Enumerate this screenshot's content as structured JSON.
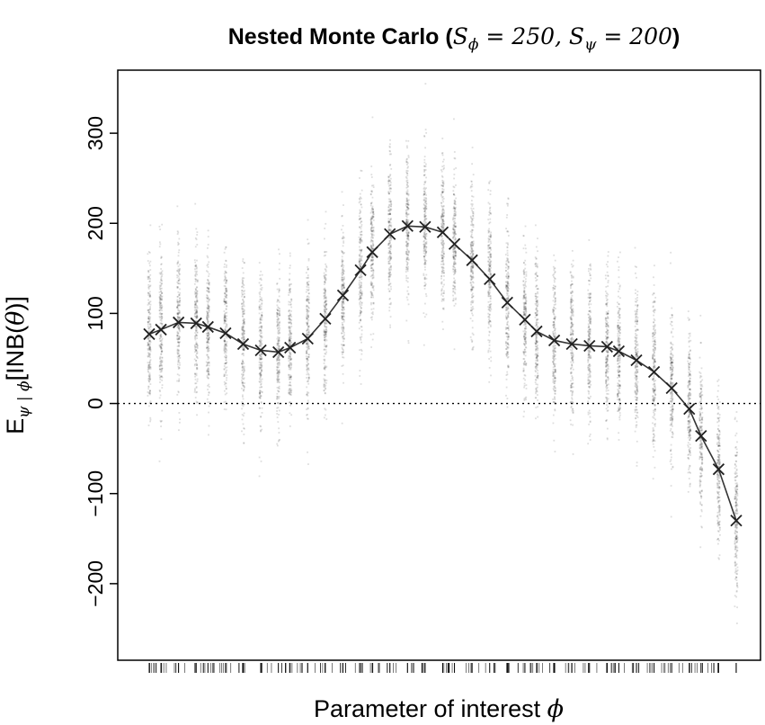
{
  "chart_data": {
    "type": "scatter",
    "title": {
      "prefix": "Nested Monte Carlo (",
      "s1": "S",
      "sub1": "ϕ",
      "eq1": " = 250, ",
      "s2": "S",
      "sub2": "ψ",
      "eq2": " = 200",
      "suffix": ")"
    },
    "xlabel": {
      "text": "Parameter of interest ",
      "symbol": "ϕ"
    },
    "ylabel": {
      "e": "E",
      "sub": "ψ | ϕ",
      "bracket": "[INB(",
      "theta": "θ",
      "close": ")]"
    },
    "ylim": [
      -285,
      370
    ],
    "yticks": [
      {
        "value": -200,
        "label": "−200"
      },
      {
        "value": -100,
        "label": "−100"
      },
      {
        "value": 0,
        "label": "0"
      },
      {
        "value": 100,
        "label": "100"
      },
      {
        "value": 200,
        "label": "200"
      },
      {
        "value": 300,
        "label": "300"
      }
    ],
    "reference_line": {
      "y": 0,
      "style": "dotted"
    },
    "x_ticks_shown": false,
    "grid": false,
    "legend": "none",
    "inner_samples_per_point": 200,
    "series": [
      {
        "marker": "x",
        "x": [
          0.0,
          0.02,
          0.05,
          0.08,
          0.1,
          0.13,
          0.16,
          0.19,
          0.22,
          0.24,
          0.27,
          0.3,
          0.33,
          0.36,
          0.38,
          0.41,
          0.44,
          0.47,
          0.5,
          0.52,
          0.55,
          0.58,
          0.61,
          0.64,
          0.66,
          0.69,
          0.72,
          0.75,
          0.78,
          0.8,
          0.83,
          0.86,
          0.89,
          0.92,
          0.94,
          0.97,
          1.0
        ],
        "y": [
          77,
          82,
          90,
          89,
          85,
          78,
          66,
          59,
          57,
          62,
          72,
          94,
          120,
          148,
          168,
          188,
          197,
          196,
          190,
          177,
          159,
          138,
          112,
          93,
          80,
          70,
          66,
          64,
          63,
          58,
          48,
          35,
          17,
          -6,
          -36,
          -73,
          -130
        ]
      }
    ]
  }
}
